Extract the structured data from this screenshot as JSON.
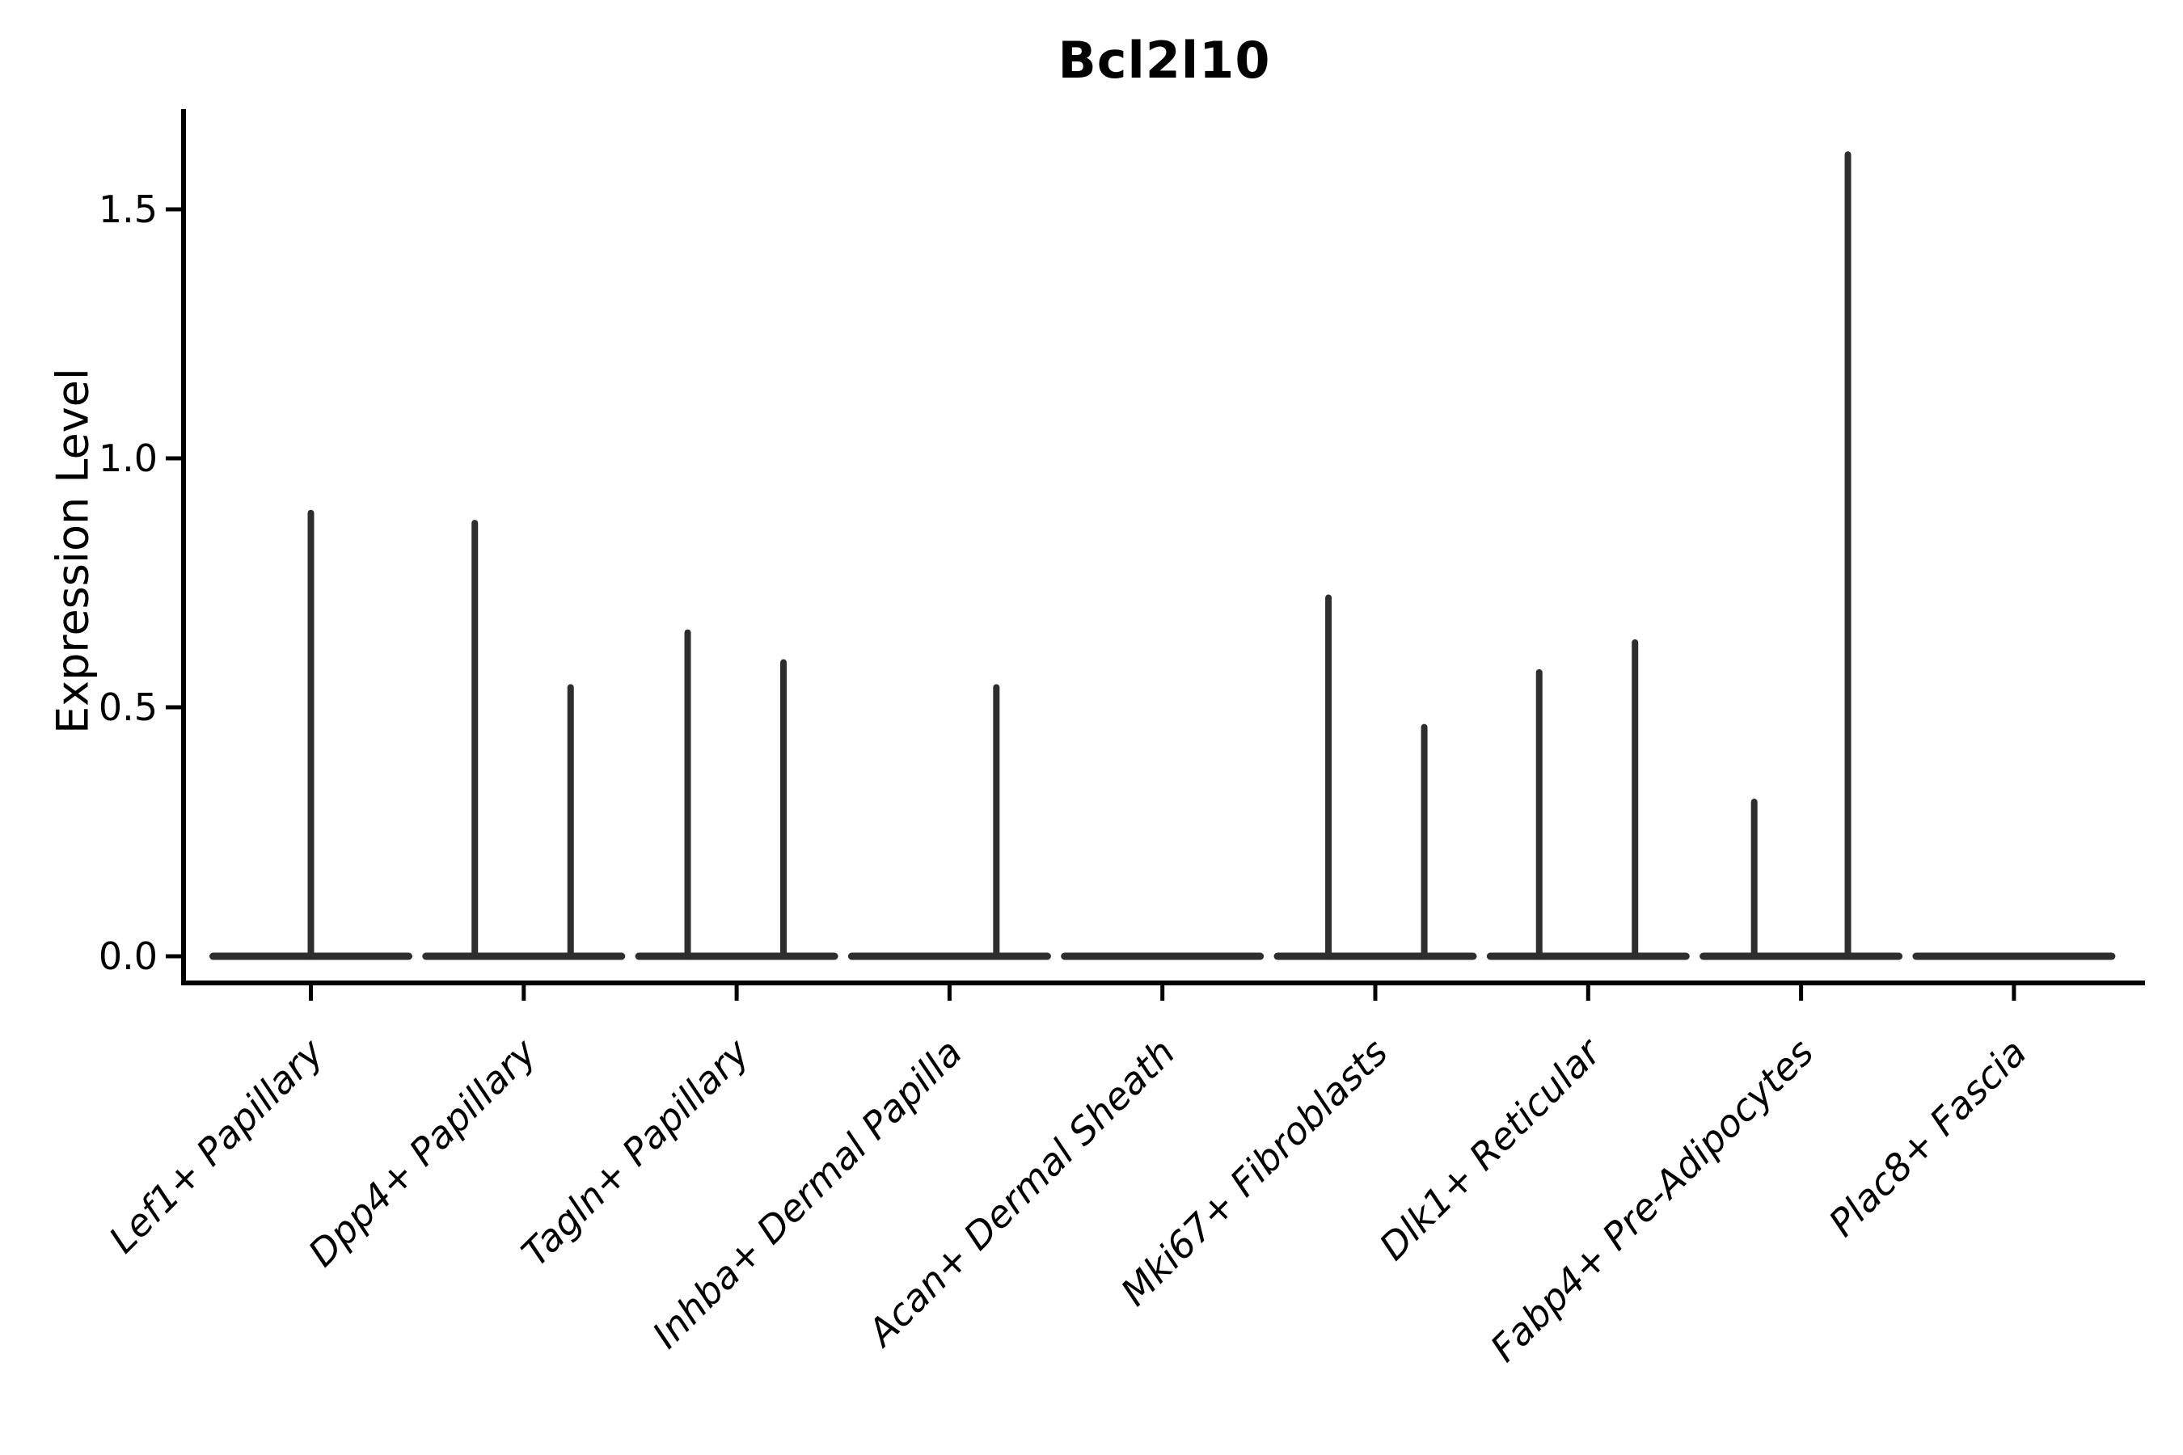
{
  "figure": {
    "title": "Bcl2l10",
    "ylabel": "Expression Level"
  },
  "chart_data": {
    "type": "violin",
    "title": "Bcl2l10",
    "xlabel": "",
    "ylabel": "Expression Level",
    "ylim": [
      -0.05,
      1.7
    ],
    "grid": false,
    "legend": "none",
    "ytick_labels": [
      "0.0",
      "0.5",
      "1.0",
      "1.5"
    ],
    "ytick_values": [
      0.0,
      0.5,
      1.0,
      1.5
    ],
    "categories": [
      "Lef1+ Papillary",
      "Dpp4+ Papillary",
      "Tagln+ Papillary",
      "Inhba+ Dermal Papilla",
      "Acan+ Dermal Sheath",
      "Mki67+ Fibroblasts",
      "Dlk1+ Reticular",
      "Fabp4+ Pre-Adipocytes",
      "Plac8+ Fascia"
    ],
    "violins": [
      {
        "category": "Lef1+ Papillary",
        "baseline_value": 0.0,
        "max_expression": 0.89,
        "spikes": [
          {
            "dx_frac": 0.0,
            "value": 0.89
          }
        ]
      },
      {
        "category": "Dpp4+ Papillary",
        "baseline_value": 0.0,
        "max_expression": 0.87,
        "spikes": [
          {
            "dx_frac": -0.23,
            "value": 0.87
          },
          {
            "dx_frac": 0.22,
            "value": 0.54
          }
        ]
      },
      {
        "category": "Tagln+ Papillary",
        "baseline_value": 0.0,
        "max_expression": 0.65,
        "spikes": [
          {
            "dx_frac": -0.23,
            "value": 0.65
          },
          {
            "dx_frac": 0.22,
            "value": 0.59
          }
        ]
      },
      {
        "category": "Inhba+ Dermal Papilla",
        "baseline_value": 0.0,
        "max_expression": 0.54,
        "spikes": [
          {
            "dx_frac": 0.22,
            "value": 0.54
          }
        ]
      },
      {
        "category": "Acan+ Dermal Sheath",
        "baseline_value": 0.0,
        "max_expression": 0.0,
        "spikes": []
      },
      {
        "category": "Mki67+ Fibroblasts",
        "baseline_value": 0.0,
        "max_expression": 0.72,
        "spikes": [
          {
            "dx_frac": -0.22,
            "value": 0.72
          },
          {
            "dx_frac": 0.23,
            "value": 0.46
          }
        ]
      },
      {
        "category": "Dlk1+ Reticular",
        "baseline_value": 0.0,
        "max_expression": 0.63,
        "spikes": [
          {
            "dx_frac": -0.23,
            "value": 0.57
          },
          {
            "dx_frac": 0.22,
            "value": 0.63
          }
        ]
      },
      {
        "category": "Fabp4+ Pre-Adipocytes",
        "baseline_value": 0.0,
        "max_expression": 1.61,
        "spikes": [
          {
            "dx_frac": -0.22,
            "value": 0.31
          },
          {
            "dx_frac": 0.22,
            "value": 1.61
          }
        ]
      },
      {
        "category": "Plac8+ Fascia",
        "baseline_value": 0.0,
        "max_expression": 0.0,
        "spikes": []
      }
    ],
    "colors": {
      "violin_outline": "#2e2e2e",
      "axis": "#000000",
      "text": "#000000",
      "background": "#ffffff"
    }
  }
}
